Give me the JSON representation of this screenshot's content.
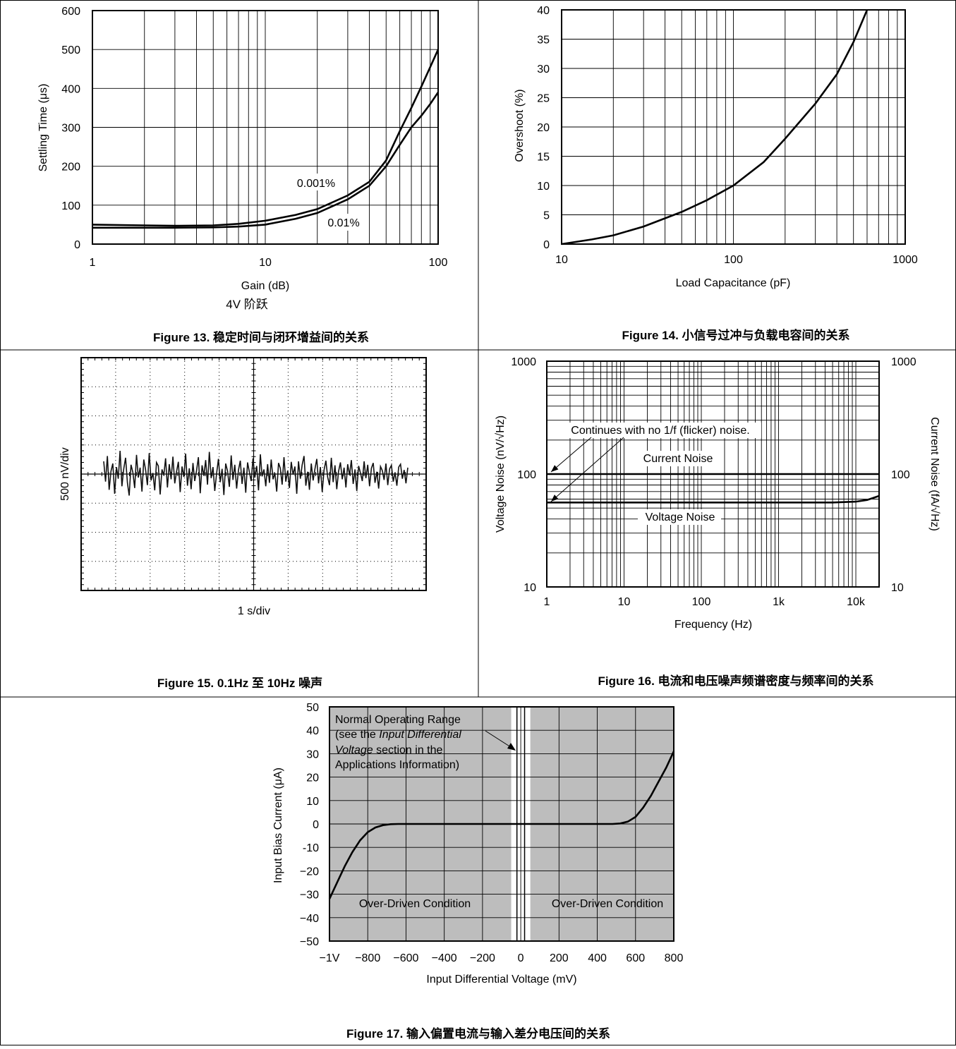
{
  "figures": [
    {
      "caption": "Figure 13. 稳定时间与闭环增益间的关系",
      "subcaption": "4V 阶跃"
    },
    {
      "caption": "Figure 14. 小信号过冲与负载电容间的关系"
    },
    {
      "caption": "Figure 15. 0.1Hz 至 10Hz 噪声"
    },
    {
      "caption": "Figure 16. 电流和电压噪声频谱密度与频率间的关系"
    },
    {
      "caption": "Figure 17. 输入偏置电流与输入差分电压间的关系"
    }
  ],
  "chart_data": [
    {
      "type": "line",
      "xlabel": "Gain (dB)",
      "ylabel": "Settling Time (μs)",
      "xscale": "log",
      "xlim": [
        1,
        100
      ],
      "ylim": [
        0,
        600
      ],
      "xticks": [
        "1",
        "10",
        "100"
      ],
      "yticks": [
        "0",
        "100",
        "200",
        "300",
        "400",
        "500",
        "600"
      ],
      "grid": true,
      "series": [
        {
          "name": "0.001%",
          "x": [
            1,
            2,
            3,
            5,
            7,
            10,
            15,
            20,
            30,
            40,
            50,
            60,
            70,
            80,
            90,
            100
          ],
          "y": [
            50,
            48,
            47,
            48,
            52,
            60,
            75,
            90,
            125,
            160,
            215,
            290,
            350,
            405,
            455,
            500
          ]
        },
        {
          "name": "0.01%",
          "x": [
            1,
            2,
            3,
            5,
            7,
            10,
            15,
            20,
            30,
            40,
            50,
            60,
            70,
            80,
            90,
            100
          ],
          "y": [
            42,
            42,
            42,
            43,
            45,
            50,
            65,
            80,
            115,
            150,
            200,
            255,
            300,
            330,
            360,
            390
          ]
        }
      ],
      "annotations": [
        "0.001%",
        "0.01%"
      ]
    },
    {
      "type": "line",
      "xlabel": "Load Capacitance (pF)",
      "ylabel": "Overshoot (%)",
      "xscale": "log",
      "xlim": [
        10,
        1000
      ],
      "ylim": [
        0,
        40
      ],
      "xticks": [
        "10",
        "100",
        "1000"
      ],
      "yticks": [
        "0",
        "5",
        "10",
        "15",
        "20",
        "25",
        "30",
        "35",
        "40"
      ],
      "grid": true,
      "series": [
        {
          "x": [
            10,
            15,
            20,
            30,
            50,
            70,
            100,
            150,
            200,
            300,
            400,
            500,
            600
          ],
          "y": [
            0,
            0.8,
            1.5,
            3,
            5.5,
            7.5,
            10,
            14,
            18,
            24,
            29,
            34.5,
            40
          ]
        }
      ]
    },
    {
      "type": "line",
      "xlabel": "1 s/div",
      "ylabel": "500 nV/div",
      "divisions_x": 10,
      "divisions_y": 8,
      "trace": [
        0.22,
        -0.13,
        0.31,
        -0.27,
        0.05,
        0.18,
        -0.34,
        0.12,
        -0.08,
        0.4,
        -0.21,
        0.09,
        0.28,
        -0.15,
        -0.37,
        0.16,
        0.03,
        -0.24,
        0.33,
        -0.06,
        0.11,
        -0.3,
        0.25,
        0.07,
        -0.19,
        0.36,
        -0.11,
        0.02,
        -0.28,
        0.2,
        0.14,
        -0.35,
        0.08,
        -0.02,
        0.27,
        -0.23,
        0.17,
        -0.09,
        0.3,
        -0.16,
        0.04,
        0.21,
        -0.31,
        0.13,
        -0.05,
        0.35,
        -0.2,
        0.1,
        -0.26,
        0.19,
        -0.12,
        0.06,
        0.29,
        -0.33,
        0.15,
        -0.03,
        0.24,
        -0.18,
        0.38,
        -0.07,
        0.12,
        -0.29,
        0.01,
        0.26,
        -0.14,
        0.09,
        -0.36,
        0.18,
        0.05,
        -0.22,
        0.32,
        -0.1,
        0.16,
        -0.25,
        0.07,
        0.23,
        -0.17,
        0.11,
        -0.32,
        0.2,
        0.03,
        -0.12,
        0.27,
        -0.06,
        0.14,
        -0.28,
        0.34,
        -0.04,
        0.08,
        -0.21,
        0.17,
        -0.15,
        0.25,
        -0.09,
        0.02,
        -0.3,
        0.19,
        0.1,
        -0.18,
        0.29,
        -0.13,
        0.06,
        -0.24,
        0.21,
        -0.01,
        0.13,
        -0.34,
        0.22,
        -0.08,
        0.16,
        0.31,
        -0.2,
        0.04,
        -0.27,
        0.18,
        -0.11,
        0.09,
        0.26,
        -0.16,
        0.12,
        -0.31,
        0.07,
        0.23,
        -0.05,
        -0.19,
        0.28,
        -0.14,
        0.15,
        -0.26,
        0.05,
        0.2,
        -0.09,
        0.11,
        -0.23,
        0.17,
        -0.02,
        0.24,
        -0.17,
        0.08,
        -0.29,
        0.14,
        0.02,
        -0.12,
        0.22,
        -0.07,
        0.16,
        -0.21,
        0.1,
        0.19,
        -0.15,
        0.04,
        -0.25,
        0.13,
        0.06,
        -0.1,
        0.18,
        -0.19,
        0.09,
        0.15,
        -0.13,
        0.03,
        -0.2,
        0.12,
        0.17,
        -0.08,
        0.07,
        -0.16,
        0.11
      ]
    },
    {
      "type": "line",
      "xlabel": "Frequency (Hz)",
      "ylabel": "Voltage Noise (nV/√Hz)",
      "ylabel_right": "Current Noise (fA/√Hz)",
      "xscale": "log",
      "yscale": "log",
      "xlim": [
        1,
        20000
      ],
      "ylim": [
        10,
        1000
      ],
      "xticks": [
        "1",
        "10",
        "100",
        "1k",
        "10k"
      ],
      "yticks": [
        "10",
        "100",
        "1000"
      ],
      "yticks_right": [
        "10",
        "100",
        "1000"
      ],
      "grid": true,
      "series": [
        {
          "name": "Current Noise",
          "x": [
            1,
            10,
            100,
            1000,
            10000,
            20000
          ],
          "y": [
            100,
            100,
            100,
            100,
            100,
            100
          ]
        },
        {
          "name": "Voltage Noise",
          "x": [
            1,
            10,
            100,
            1000,
            5000,
            10000,
            14000,
            20000
          ],
          "y": [
            56,
            56,
            56,
            56,
            56,
            57,
            59,
            64
          ]
        }
      ],
      "annotations": [
        "Continues with no 1/f (flicker) noise.",
        "Current Noise",
        "Voltage Noise"
      ]
    },
    {
      "type": "line",
      "xlabel": "Input Differential Voltage (mV)",
      "ylabel": "Input Bias Current (μA)",
      "xlim": [
        -1000,
        800
      ],
      "ylim": [
        -50,
        50
      ],
      "xticks": [
        "−1V",
        "−800",
        "−600",
        "−400",
        "−200",
        "0",
        "200",
        "400",
        "600",
        "800"
      ],
      "yticks": [
        "50",
        "40",
        "30",
        "20",
        "10",
        "0",
        "-10",
        "−20",
        "−30",
        "−40",
        "−50"
      ],
      "grid": true,
      "shaded_regions_mv": [
        [
          -1000,
          -50
        ],
        [
          50,
          800
        ]
      ],
      "series": [
        {
          "x": [
            -1000,
            -960,
            -920,
            -880,
            -840,
            -800,
            -760,
            -720,
            -680,
            -640,
            -600,
            -500,
            -300,
            0,
            300,
            480,
            520,
            560,
            600,
            640,
            680,
            720,
            760,
            800
          ],
          "y": [
            -32,
            -25,
            -18,
            -12,
            -7,
            -3.5,
            -1.5,
            -0.5,
            -0.1,
            0,
            0,
            0,
            0,
            0,
            0,
            0,
            0.2,
            1,
            3,
            7,
            12,
            18,
            24,
            31
          ]
        }
      ],
      "annotations": [
        "Normal Operating Range",
        "(see the ",
        "Input Differential",
        "Voltage",
        " section in the",
        "Applications Information)",
        "Over-Driven Condition",
        "Over-Driven Condition"
      ]
    }
  ]
}
